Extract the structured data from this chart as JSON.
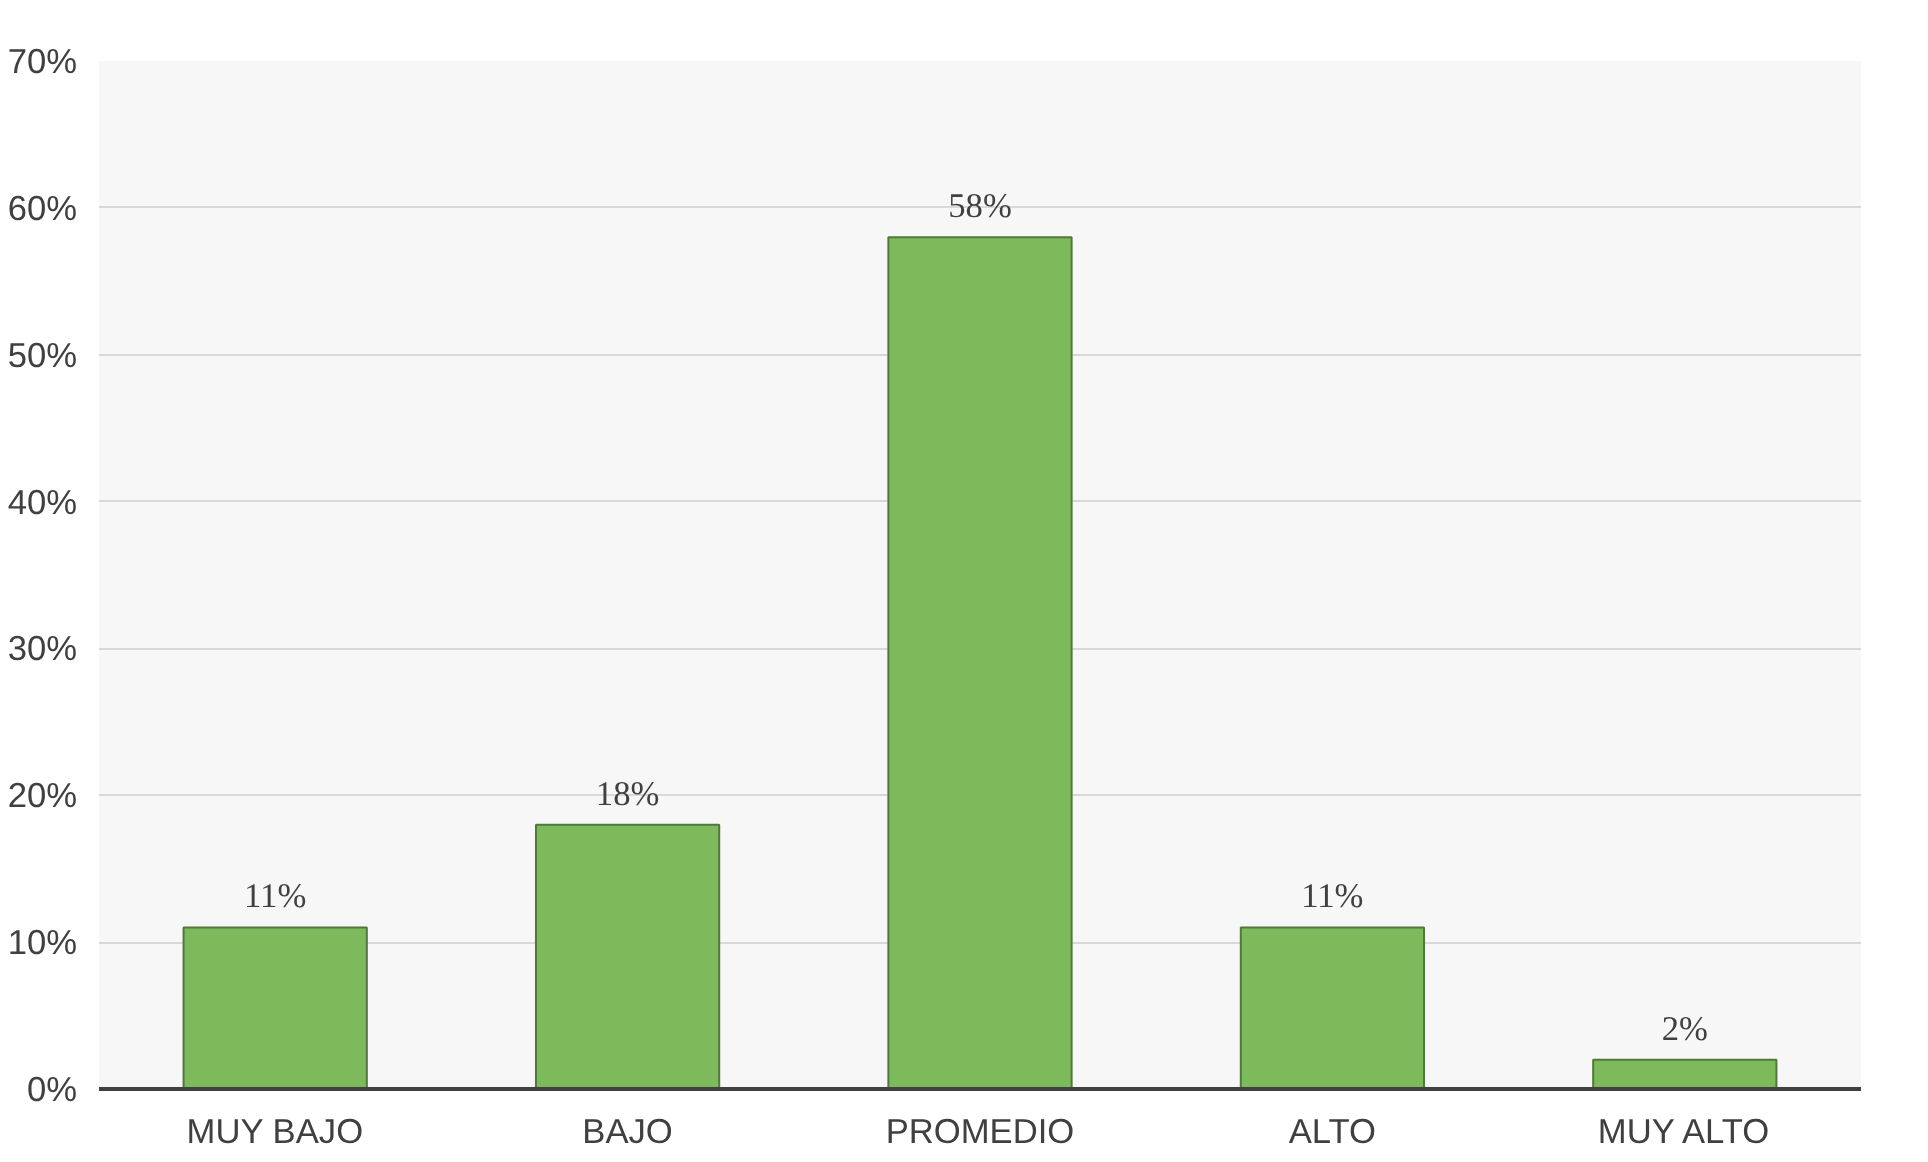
{
  "chart_data": {
    "type": "bar",
    "categories": [
      "MUY BAJO",
      "BAJO",
      "PROMEDIO",
      "ALTO",
      "MUY ALTO"
    ],
    "values": [
      11,
      18,
      58,
      11,
      2
    ],
    "color": "#7dba5c",
    "value_labels": [
      "11%",
      "18%",
      "58%",
      "11%",
      "2%"
    ],
    "ylim": [
      0,
      70
    ],
    "yticks": [
      {
        "value": 0,
        "label": "0%"
      },
      {
        "value": 10,
        "label": "10%"
      },
      {
        "value": 20,
        "label": "20%"
      },
      {
        "value": 30,
        "label": "30%"
      },
      {
        "value": 40,
        "label": "40%"
      },
      {
        "value": 50,
        "label": "50%"
      },
      {
        "value": 60,
        "label": "60%"
      },
      {
        "value": 70,
        "label": "70%"
      }
    ],
    "grid": "y"
  }
}
